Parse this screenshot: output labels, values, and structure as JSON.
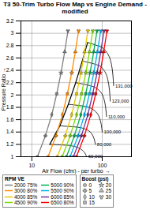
{
  "chart_data": {
    "type": "line",
    "title": "T3 50-Trim Turbo Flow Map vs Engine Demand - modified",
    "x_label": "Air Flow (cfm) - per turbo",
    "y_label": "Pressure Ratio",
    "log": "x",
    "grid": true,
    "xlim": [
      7,
      260
    ],
    "xticks": [
      10,
      100
    ],
    "ylim": [
      1,
      3.2
    ],
    "yticks": [
      1,
      1.2,
      1.4,
      1.6,
      1.8,
      2,
      2.2,
      2.4,
      2.6,
      2.8,
      3,
      3.2
    ],
    "legend_title": "RPM VE",
    "series": [
      {
        "name": "2000 75%",
        "color": "#808080",
        "x": [
          12,
          15.6,
          19.2,
          22.6,
          26.0,
          29.3,
          32.6
        ],
        "y": [
          1,
          1.34,
          1.68,
          2.02,
          2.36,
          2.7,
          3.04
        ]
      },
      {
        "name": "3000 80%",
        "color": "#ff8c00",
        "x": [
          17,
          22.1,
          27.2,
          32.0,
          36.9,
          41.5,
          46.2
        ],
        "y": [
          1,
          1.34,
          1.68,
          2.02,
          2.36,
          2.7,
          3.04
        ]
      },
      {
        "name": "4000 85%",
        "color": "#e6c800",
        "x": [
          23,
          29.9,
          36.8,
          43.2,
          49.9,
          56.1,
          62.6
        ],
        "y": [
          1,
          1.34,
          1.68,
          2.02,
          2.36,
          2.7,
          3.04
        ]
      },
      {
        "name": "4500 90%",
        "color": "#7fdc00",
        "x": [
          27,
          35.1,
          43.2,
          50.8,
          58.6,
          65.9,
          73.4
        ],
        "y": [
          1,
          1.34,
          1.68,
          2.02,
          2.36,
          2.7,
          3.04
        ]
      },
      {
        "name": "5000 90%",
        "color": "#00b050",
        "x": [
          31,
          40.3,
          49.6,
          58.3,
          67.3,
          75.6,
          84.3
        ],
        "y": [
          1,
          1.34,
          1.68,
          2.02,
          2.36,
          2.7,
          3.04
        ]
      },
      {
        "name": "5500 90%",
        "color": "#00b0f0",
        "x": [
          35,
          45.5,
          56.0,
          65.8,
          76.0,
          85.4,
          95.2
        ],
        "y": [
          1,
          1.34,
          1.68,
          2.02,
          2.36,
          2.7,
          3.04
        ]
      },
      {
        "name": "6000 85%",
        "color": "#7030a0",
        "x": [
          39,
          50.7,
          62.4,
          73.3,
          84.6,
          95.2,
          106.1
        ],
        "y": [
          1,
          1.34,
          1.68,
          2.02,
          2.36,
          2.7,
          3.04
        ]
      },
      {
        "name": "6500 80%",
        "color": "#ff0000",
        "x": [
          43,
          55.9,
          68.8,
          80.8,
          93.3,
          104.9,
          117.0
        ],
        "y": [
          1,
          1.34,
          1.68,
          2.02,
          2.36,
          2.7,
          3.04
        ]
      }
    ],
    "boost_title": "Boost (psi)",
    "boost_values": [
      0,
      5,
      10,
      15,
      20,
      25,
      30
    ],
    "surge_line": {
      "color": "#000000",
      "x": [
        18,
        25,
        33,
        42,
        52,
        62
      ],
      "y": [
        1.2,
        1.5,
        1.85,
        2.2,
        2.55,
        2.85
      ]
    },
    "speed_lines": [
      {
        "name": "60,000",
        "color": "#000000",
        "x": [
          18,
          35,
          50,
          60
        ],
        "y": [
          1.2,
          1.18,
          1.12,
          1.0
        ]
      },
      {
        "name": "80,000",
        "color": "#000000",
        "x": [
          25,
          50,
          70,
          80
        ],
        "y": [
          1.5,
          1.47,
          1.38,
          1.2
        ]
      },
      {
        "name": "100,000",
        "color": "#000000",
        "x": [
          33,
          65,
          90,
          100
        ],
        "y": [
          1.85,
          1.8,
          1.65,
          1.4
        ]
      },
      {
        "name": "110,000",
        "color": "#000000",
        "x": [
          42,
          80,
          105,
          115
        ],
        "y": [
          2.2,
          2.12,
          1.95,
          1.65
        ]
      },
      {
        "name": "123,000",
        "color": "#000000",
        "x": [
          52,
          95,
          120,
          130
        ],
        "y": [
          2.55,
          2.46,
          2.25,
          1.9
        ]
      },
      {
        "name": "131,000",
        "color": "#000000",
        "x": [
          62,
          105,
          135,
          145
        ],
        "y": [
          2.85,
          2.75,
          2.5,
          2.15
        ]
      }
    ]
  }
}
